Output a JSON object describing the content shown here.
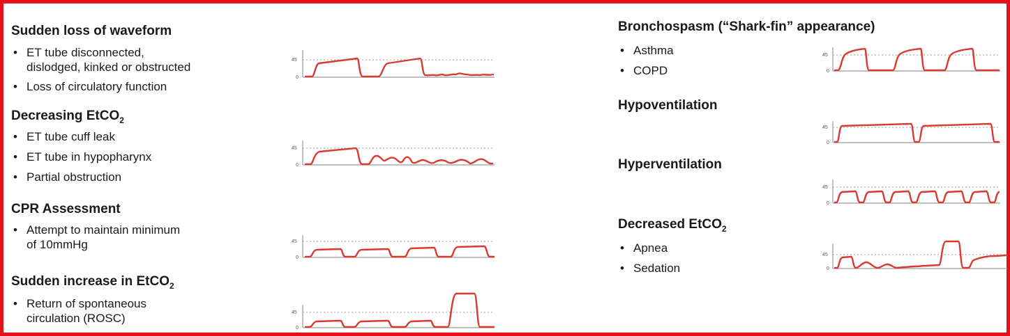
{
  "border_color": "#e8101a",
  "trace_color": "#d93a30",
  "tick_labels": {
    "top": "45",
    "bottom": "0"
  },
  "sections": {
    "sudden_loss": {
      "title": "Sudden loss of waveform",
      "bullets": [
        "ET tube disconnected,",
        "dislodged, kinked or obstructed",
        "Loss of circulatory function"
      ]
    },
    "decreasing": {
      "title_text": "Decreasing EtCO",
      "title_sub": "2",
      "bullets": [
        "ET tube cuff leak",
        "ET tube in hypopharynx",
        "Partial obstruction"
      ]
    },
    "cpr": {
      "title": "CPR Assessment",
      "bullets": [
        "Attempt to maintain minimum",
        "of 10mmHg"
      ]
    },
    "sudden_increase": {
      "title_text": "Sudden increase in EtCO",
      "title_sub": "2",
      "bullets": [
        "Return of spontaneous",
        "circulation (ROSC)"
      ]
    },
    "bronchospasm": {
      "title": "Bronchospasm (“Shark-fin” appearance)",
      "bullets": [
        "Asthma",
        "COPD"
      ]
    },
    "hypoventilation": {
      "title": "Hypoventilation"
    },
    "hyperventilation": {
      "title": "Hyperventilation"
    },
    "decreased": {
      "title_text": "Decreased EtCO",
      "title_sub": "2",
      "bullets": [
        "Apnea",
        "Sedation"
      ]
    }
  }
}
